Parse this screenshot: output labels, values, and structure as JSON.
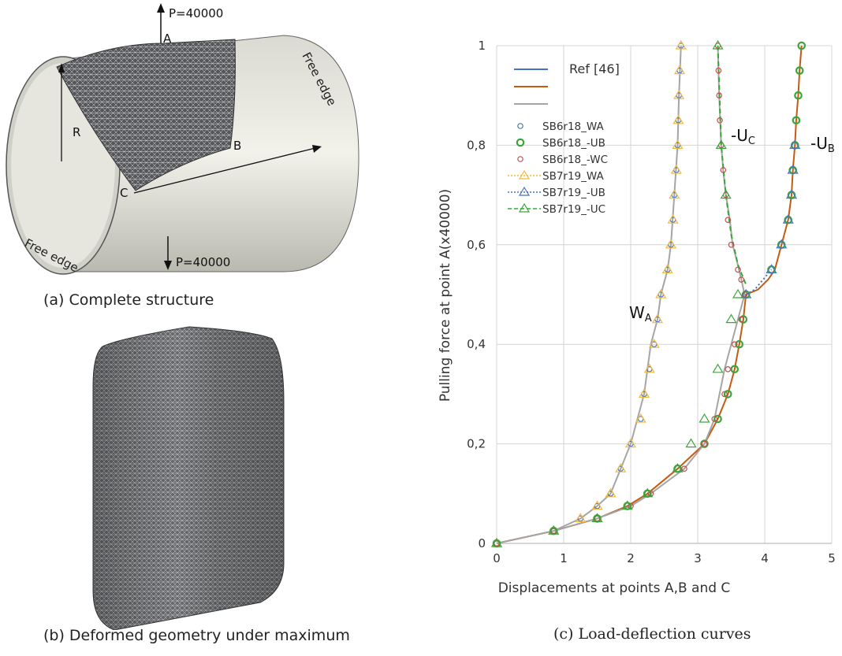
{
  "panel_a": {
    "caption": "(a) Complete structure",
    "labels": {
      "load_top": "P=40000",
      "load_bottom": "P=40000",
      "point_a": "A",
      "point_b": "B",
      "point_c": "C",
      "radius": "R",
      "free_edge_right": "Free edge",
      "free_edge_left": "Free edge"
    }
  },
  "panel_b": {
    "caption": "(b) Deformed geometry under maximum"
  },
  "panel_c": {
    "caption": "(c) Load-deflection curves",
    "curve_labels": {
      "wa_main": "W",
      "wa_sub": "A",
      "uc_main": "-U",
      "uc_sub": "C",
      "ub_main": "-U",
      "ub_sub": "B"
    }
  },
  "chart_data": {
    "type": "line",
    "xlabel": "Displacements at points A,B and C",
    "ylabel": "Pulling force at point A(x40000)",
    "xlim": [
      0,
      5
    ],
    "ylim": [
      0,
      1
    ],
    "x_ticks": [
      "0",
      "1",
      "2",
      "3",
      "4",
      "5"
    ],
    "y_ticks": [
      "0",
      "0,2",
      "0,4",
      "0,6",
      "0,8",
      "1"
    ],
    "grid": true,
    "legend_position": "top-left",
    "legend": [
      {
        "label": "Ref [46]",
        "color": "#4472c4",
        "style": "line"
      },
      {
        "label": "",
        "color": "#c55a11",
        "style": "line"
      },
      {
        "label": "",
        "color": "#a5a5a5",
        "style": "line"
      },
      {
        "label": "SB6r18_WA",
        "color": "#4472c4",
        "style": "circle-small"
      },
      {
        "label": "SB6r18_-UB",
        "color": "#3aa63a",
        "style": "circle-bold"
      },
      {
        "label": "SB6r18_-WC",
        "color": "#c0504d",
        "style": "circle-small"
      },
      {
        "label": "SB7r19_WA",
        "color": "#f2b93b",
        "style": "dotted-triangle"
      },
      {
        "label": "SB7r19_-UB",
        "color": "#4472c4",
        "style": "dotted-triangle"
      },
      {
        "label": "SB7r19_-UC",
        "color": "#3aa63a",
        "style": "dashed-triangle"
      }
    ],
    "series": [
      {
        "color": "#a5a5a5",
        "points": [
          [
            0,
            0
          ],
          [
            0.85,
            0.025
          ],
          [
            1.25,
            0.05
          ],
          [
            1.5,
            0.075
          ],
          [
            1.7,
            0.1
          ],
          [
            1.85,
            0.15
          ],
          [
            2.0,
            0.2
          ],
          [
            2.2,
            0.3
          ],
          [
            2.3,
            0.4
          ],
          [
            2.4,
            0.45
          ],
          [
            2.45,
            0.5
          ],
          [
            2.55,
            0.55
          ],
          [
            2.6,
            0.6
          ],
          [
            2.65,
            0.7
          ],
          [
            2.7,
            0.8
          ],
          [
            2.72,
            0.9
          ],
          [
            2.75,
            1.0
          ]
        ]
      },
      {
        "color": "#c55a11",
        "points": [
          [
            0,
            0
          ],
          [
            0.85,
            0.025
          ],
          [
            1.5,
            0.05
          ],
          [
            1.95,
            0.075
          ],
          [
            2.25,
            0.1
          ],
          [
            2.7,
            0.15
          ],
          [
            3.1,
            0.2
          ],
          [
            3.3,
            0.25
          ],
          [
            3.45,
            0.3
          ],
          [
            3.55,
            0.35
          ],
          [
            3.62,
            0.4
          ],
          [
            3.68,
            0.45
          ],
          [
            3.72,
            0.5
          ],
          [
            3.9,
            0.51
          ],
          [
            4.05,
            0.53
          ],
          [
            4.15,
            0.55
          ],
          [
            4.25,
            0.6
          ],
          [
            4.35,
            0.65
          ],
          [
            4.4,
            0.7
          ],
          [
            4.42,
            0.75
          ],
          [
            4.45,
            0.8
          ],
          [
            4.47,
            0.85
          ],
          [
            4.5,
            0.9
          ],
          [
            4.52,
            0.95
          ],
          [
            4.55,
            1.0
          ]
        ]
      },
      {
        "color": "#a5a5a5",
        "points": [
          [
            3.3,
            1.0
          ],
          [
            3.32,
            0.9
          ],
          [
            3.35,
            0.8
          ],
          [
            3.38,
            0.75
          ],
          [
            3.42,
            0.7
          ],
          [
            3.48,
            0.65
          ],
          [
            3.52,
            0.6
          ],
          [
            3.58,
            0.57
          ],
          [
            3.65,
            0.53
          ],
          [
            3.7,
            0.5
          ],
          [
            3.6,
            0.45
          ],
          [
            3.4,
            0.35
          ],
          [
            3.25,
            0.25
          ],
          [
            3.1,
            0.2
          ],
          [
            2.8,
            0.15
          ],
          [
            2.3,
            0.1
          ],
          [
            2.0,
            0.075
          ],
          [
            1.5,
            0.05
          ],
          [
            0.85,
            0.025
          ],
          [
            0,
            0
          ]
        ]
      },
      {
        "color": "#4472c4",
        "dash": "2 3",
        "points": [
          [
            3.72,
            0.5
          ],
          [
            3.85,
            0.51
          ],
          [
            4.1,
            0.55
          ]
        ]
      },
      {
        "color": "#3aa63a",
        "dash": "6 4",
        "points": [
          [
            3.3,
            1.0
          ],
          [
            3.35,
            0.8
          ],
          [
            3.42,
            0.7
          ],
          [
            3.5,
            0.62
          ],
          [
            3.6,
            0.56
          ],
          [
            3.72,
            0.52
          ]
        ]
      }
    ],
    "markers": [
      {
        "style": "circle-small",
        "color": "#4472c4",
        "points": [
          [
            0,
            0
          ],
          [
            0.85,
            0.025
          ],
          [
            1.25,
            0.05
          ],
          [
            1.5,
            0.075
          ],
          [
            1.7,
            0.1
          ],
          [
            1.85,
            0.15
          ],
          [
            2.0,
            0.2
          ],
          [
            2.15,
            0.25
          ],
          [
            2.2,
            0.3
          ],
          [
            2.28,
            0.35
          ],
          [
            2.35,
            0.4
          ],
          [
            2.4,
            0.45
          ],
          [
            2.45,
            0.5
          ],
          [
            2.55,
            0.55
          ],
          [
            2.6,
            0.6
          ],
          [
            2.63,
            0.65
          ],
          [
            2.65,
            0.7
          ],
          [
            2.68,
            0.75
          ],
          [
            2.7,
            0.8
          ],
          [
            2.71,
            0.85
          ],
          [
            2.72,
            0.9
          ],
          [
            2.73,
            0.95
          ],
          [
            2.75,
            1.0
          ]
        ]
      },
      {
        "style": "triangle",
        "color": "#f2b93b",
        "points": [
          [
            0,
            0
          ],
          [
            0.85,
            0.025
          ],
          [
            1.25,
            0.05
          ],
          [
            1.5,
            0.075
          ],
          [
            1.7,
            0.1
          ],
          [
            1.85,
            0.15
          ],
          [
            2.0,
            0.2
          ],
          [
            2.15,
            0.25
          ],
          [
            2.2,
            0.3
          ],
          [
            2.28,
            0.35
          ],
          [
            2.35,
            0.4
          ],
          [
            2.4,
            0.45
          ],
          [
            2.45,
            0.5
          ],
          [
            2.55,
            0.55
          ],
          [
            2.6,
            0.6
          ],
          [
            2.63,
            0.65
          ],
          [
            2.65,
            0.7
          ],
          [
            2.68,
            0.75
          ],
          [
            2.7,
            0.8
          ],
          [
            2.71,
            0.85
          ],
          [
            2.72,
            0.9
          ],
          [
            2.73,
            0.95
          ],
          [
            2.75,
            1.0
          ]
        ]
      },
      {
        "style": "circle-bold",
        "color": "#3aa63a",
        "points": [
          [
            0,
            0
          ],
          [
            0.85,
            0.025
          ],
          [
            1.5,
            0.05
          ],
          [
            1.95,
            0.075
          ],
          [
            2.25,
            0.1
          ],
          [
            2.7,
            0.15
          ],
          [
            3.1,
            0.2
          ],
          [
            3.3,
            0.25
          ],
          [
            3.45,
            0.3
          ],
          [
            3.55,
            0.35
          ],
          [
            3.62,
            0.4
          ],
          [
            3.68,
            0.45
          ],
          [
            3.72,
            0.5
          ],
          [
            4.1,
            0.55
          ],
          [
            4.25,
            0.6
          ],
          [
            4.35,
            0.65
          ],
          [
            4.4,
            0.7
          ],
          [
            4.42,
            0.75
          ],
          [
            4.45,
            0.8
          ],
          [
            4.47,
            0.85
          ],
          [
            4.5,
            0.9
          ],
          [
            4.52,
            0.95
          ],
          [
            4.55,
            1.0
          ]
        ]
      },
      {
        "style": "triangle",
        "color": "#4472c4",
        "points": [
          [
            3.72,
            0.5
          ],
          [
            4.1,
            0.55
          ],
          [
            4.25,
            0.6
          ],
          [
            4.35,
            0.65
          ],
          [
            4.4,
            0.7
          ],
          [
            4.42,
            0.75
          ],
          [
            4.45,
            0.8
          ]
        ]
      },
      {
        "style": "circle-small",
        "color": "#c0504d",
        "points": [
          [
            0,
            0
          ],
          [
            0.85,
            0.025
          ],
          [
            1.5,
            0.05
          ],
          [
            2.0,
            0.075
          ],
          [
            2.3,
            0.1
          ],
          [
            2.8,
            0.15
          ],
          [
            3.1,
            0.2
          ],
          [
            3.25,
            0.25
          ],
          [
            3.4,
            0.3
          ],
          [
            3.45,
            0.35
          ],
          [
            3.55,
            0.4
          ],
          [
            3.65,
            0.45
          ],
          [
            3.7,
            0.5
          ],
          [
            3.65,
            0.53
          ],
          [
            3.6,
            0.55
          ],
          [
            3.5,
            0.6
          ],
          [
            3.45,
            0.65
          ],
          [
            3.42,
            0.7
          ],
          [
            3.38,
            0.75
          ],
          [
            3.35,
            0.8
          ],
          [
            3.33,
            0.85
          ],
          [
            3.32,
            0.9
          ],
          [
            3.31,
            0.95
          ],
          [
            3.3,
            1.0
          ]
        ]
      },
      {
        "style": "triangle",
        "color": "#3aa63a",
        "points": [
          [
            0,
            0
          ],
          [
            0.85,
            0.025
          ],
          [
            1.5,
            0.05
          ],
          [
            1.95,
            0.075
          ],
          [
            2.25,
            0.1
          ],
          [
            2.7,
            0.15
          ],
          [
            2.9,
            0.2
          ],
          [
            3.1,
            0.25
          ],
          [
            3.3,
            0.35
          ],
          [
            3.5,
            0.45
          ],
          [
            3.6,
            0.5
          ],
          [
            3.42,
            0.7
          ],
          [
            3.35,
            0.8
          ],
          [
            3.3,
            1.0
          ]
        ]
      }
    ]
  }
}
